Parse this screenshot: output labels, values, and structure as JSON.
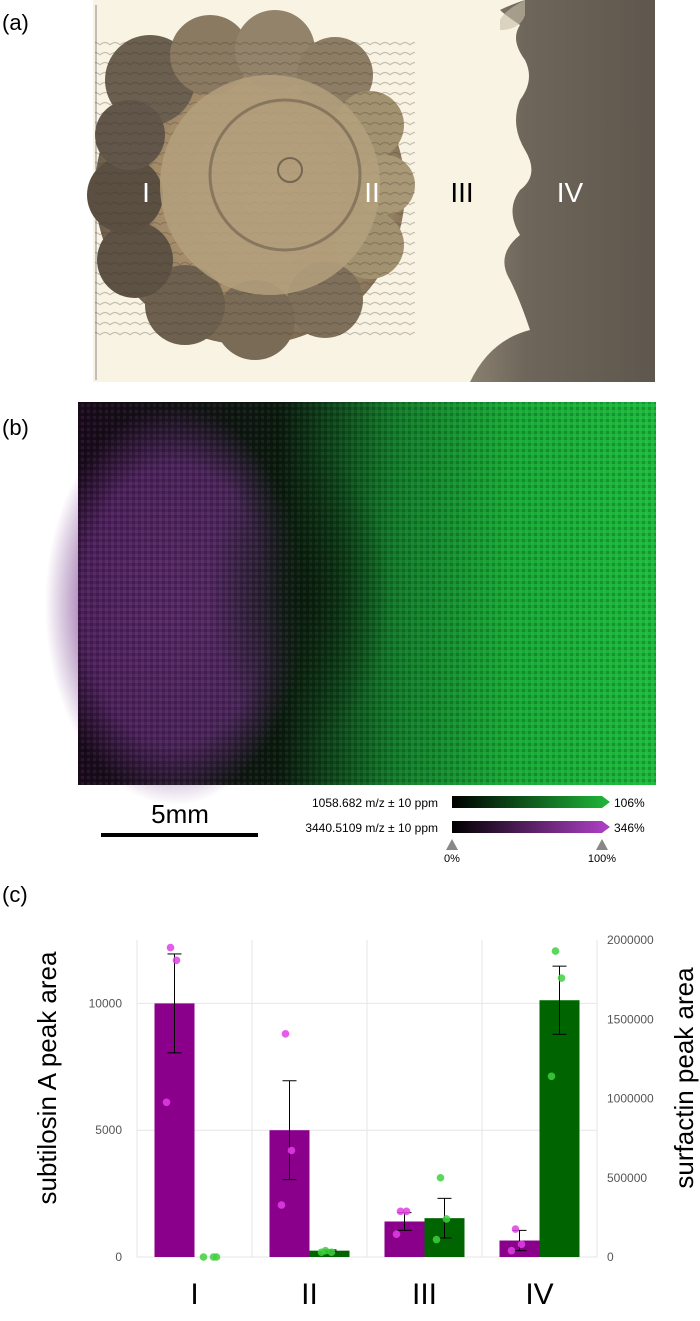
{
  "panel_a": {
    "label": "(a)",
    "regions": [
      "I",
      "II",
      "III",
      "IV"
    ]
  },
  "panel_b": {
    "label": "(b)",
    "scale_bar": "5mm",
    "legend": [
      {
        "mz": "1058.682 m/z ± 10 ppm",
        "max": "106%",
        "color": "#1fb83a"
      },
      {
        "mz": "3440.5109 m/z ± 10 ppm",
        "max": "346%",
        "color": "#b040c8"
      }
    ],
    "min_label": "0%",
    "max_label": "100%"
  },
  "panel_c": {
    "label": "(c)"
  },
  "chart_data": {
    "type": "bar",
    "categories": [
      "I",
      "II",
      "III",
      "IV"
    ],
    "ylabel_left": "subtilosin A peak area",
    "ylabel_right": "surfactin peak area",
    "ylim_left": [
      0,
      12500
    ],
    "ylim_right": [
      0,
      2000000
    ],
    "left_ticks": [
      0,
      5000,
      10000
    ],
    "right_ticks": [
      0,
      500000,
      1000000,
      1500000,
      2000000
    ],
    "grid": true,
    "series": [
      {
        "axis": "left",
        "color": "#8b008b",
        "point_color": "#e040e8",
        "values": [
          10000,
          5000,
          1400,
          650
        ],
        "errors": [
          1950,
          1950,
          350,
          400
        ],
        "points": [
          [
            12200,
            11700,
            6100
          ],
          [
            8800,
            4200,
            2050
          ],
          [
            1800,
            1800,
            900
          ],
          [
            1100,
            500,
            250
          ]
        ]
      },
      {
        "axis": "right",
        "color": "#006400",
        "point_color": "#40d040",
        "values": [
          0,
          40000,
          245000,
          1620000
        ],
        "errors": [
          0,
          5000,
          125000,
          215000
        ],
        "points": [
          [
            0,
            0,
            0
          ],
          [
            40000,
            30000,
            30000
          ],
          [
            500000,
            240000,
            110000
          ],
          [
            1930000,
            1760000,
            1140000
          ]
        ]
      }
    ]
  }
}
